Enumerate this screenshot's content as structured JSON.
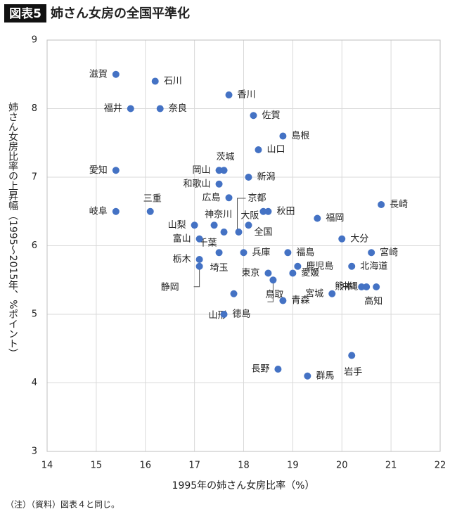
{
  "chart_data": {
    "type": "scatter",
    "title_tag": "図表5",
    "title": "姉さん女房の全国平準化",
    "x_label": "1995年の姉さん女房比率（%）",
    "y_label": "姉さん女房比率の上昇幅（1995～2015年、%ポイント）",
    "note": "（注）（資料）図表４と同じ。",
    "color": "#4472c4",
    "grid": true,
    "xlim": [
      14,
      22
    ],
    "ylim": [
      3,
      9
    ],
    "xticks": [
      14,
      15,
      16,
      17,
      18,
      19,
      20,
      21,
      22
    ],
    "yticks": [
      3,
      4,
      5,
      6,
      7,
      8,
      9
    ],
    "point_labels": [
      "滋賀",
      "石川",
      "香川",
      "福井",
      "奈良",
      "佐賀",
      "島根",
      "山口",
      "愛知",
      "茨城",
      "岡山",
      "新潟",
      "和歌山",
      "広島",
      "長崎",
      "岐阜",
      "三重",
      "大阪",
      "秋田",
      "福岡",
      "山梨",
      "神奈川",
      "京都",
      "千葉",
      "全国",
      "富山",
      "大分",
      "栃木",
      "静岡",
      "兵庫",
      "埼玉",
      "福島",
      "宮崎",
      "鹿児島",
      "北海道",
      "東京",
      "愛媛",
      "鳥取",
      "山形",
      "宮城",
      "熊本",
      "沖縄",
      "高知",
      "青森",
      "徳島",
      "岩手",
      "長野",
      "群馬"
    ],
    "x": [
      15.4,
      16.2,
      17.7,
      15.7,
      16.3,
      18.2,
      18.8,
      18.3,
      15.4,
      17.6,
      17.5,
      18.1,
      17.5,
      17.7,
      20.8,
      15.4,
      16.1,
      18.4,
      18.5,
      19.5,
      17.0,
      17.4,
      17.9,
      17.6,
      18.1,
      17.1,
      20.0,
      17.1,
      17.1,
      18.0,
      17.5,
      18.9,
      20.6,
      19.1,
      20.2,
      18.5,
      19.0,
      18.6,
      17.8,
      19.8,
      20.4,
      20.5,
      20.7,
      18.8,
      17.6,
      20.2,
      18.7,
      19.3
    ],
    "values": [
      8.5,
      8.4,
      8.2,
      8.0,
      8.0,
      7.9,
      7.6,
      7.4,
      7.1,
      7.1,
      7.1,
      7.0,
      6.9,
      6.7,
      6.6,
      6.5,
      6.5,
      6.5,
      6.5,
      6.4,
      6.3,
      6.3,
      6.2,
      6.2,
      6.3,
      6.1,
      6.1,
      5.8,
      5.7,
      5.9,
      5.9,
      5.9,
      5.9,
      5.7,
      5.7,
      5.6,
      5.6,
      5.5,
      5.3,
      5.3,
      5.4,
      5.4,
      5.4,
      5.2,
      5.0,
      4.4,
      4.2,
      4.1
    ]
  }
}
